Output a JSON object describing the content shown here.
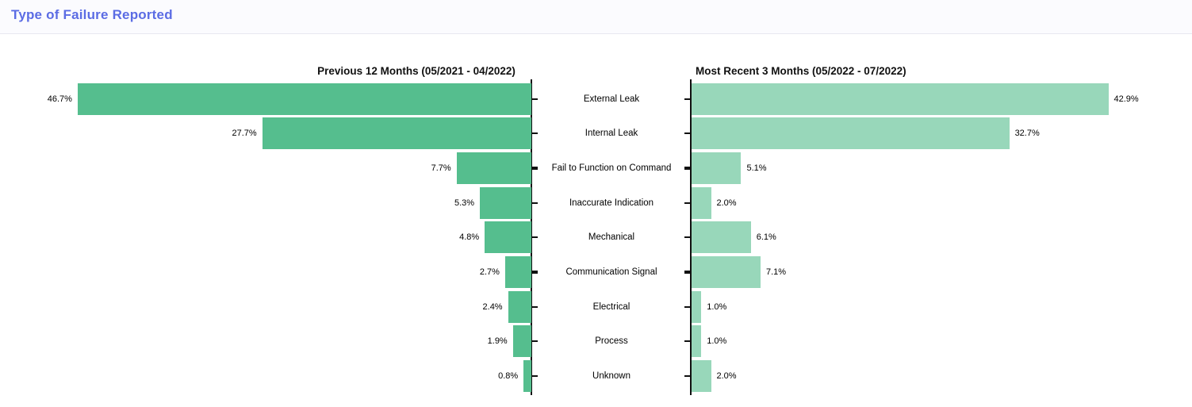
{
  "header": {
    "title": "Type of Failure Reported",
    "accent_color": "#5b6ce4",
    "background_color": "#fbfbfe"
  },
  "chart_data": {
    "type": "bar",
    "orientation": "horizontal",
    "layout": "tornado-mirrored",
    "grid": false,
    "legend_position": "none",
    "value_suffix": "%",
    "xlim": [
      0,
      47
    ],
    "categories": [
      "External Leak",
      "Internal Leak",
      "Fail to Function on Command",
      "Inaccurate Indication",
      "Mechanical",
      "Communication Signal",
      "Electrical",
      "Process",
      "Unknown"
    ],
    "series": [
      {
        "name": "Previous 12 Months (05/2021 - 04/2022)",
        "direction": "left",
        "color": "#55be8e",
        "values": [
          46.7,
          27.7,
          7.7,
          5.3,
          4.8,
          2.7,
          2.4,
          1.9,
          0.8
        ],
        "labels": [
          "46.7%",
          "27.7%",
          "7.7%",
          "5.3%",
          "4.8%",
          "2.7%",
          "2.4%",
          "1.9%",
          "0.8%"
        ]
      },
      {
        "name": "Most Recent 3 Months (05/2022 - 07/2022)",
        "direction": "right",
        "color": "#98d7ba",
        "values": [
          42.9,
          32.7,
          5.1,
          2.0,
          6.1,
          7.1,
          1.0,
          1.0,
          2.0
        ],
        "labels": [
          "42.9%",
          "32.7%",
          "5.1%",
          "2.0%",
          "6.1%",
          "7.1%",
          "1.0%",
          "1.0%",
          "2.0%"
        ]
      }
    ]
  }
}
